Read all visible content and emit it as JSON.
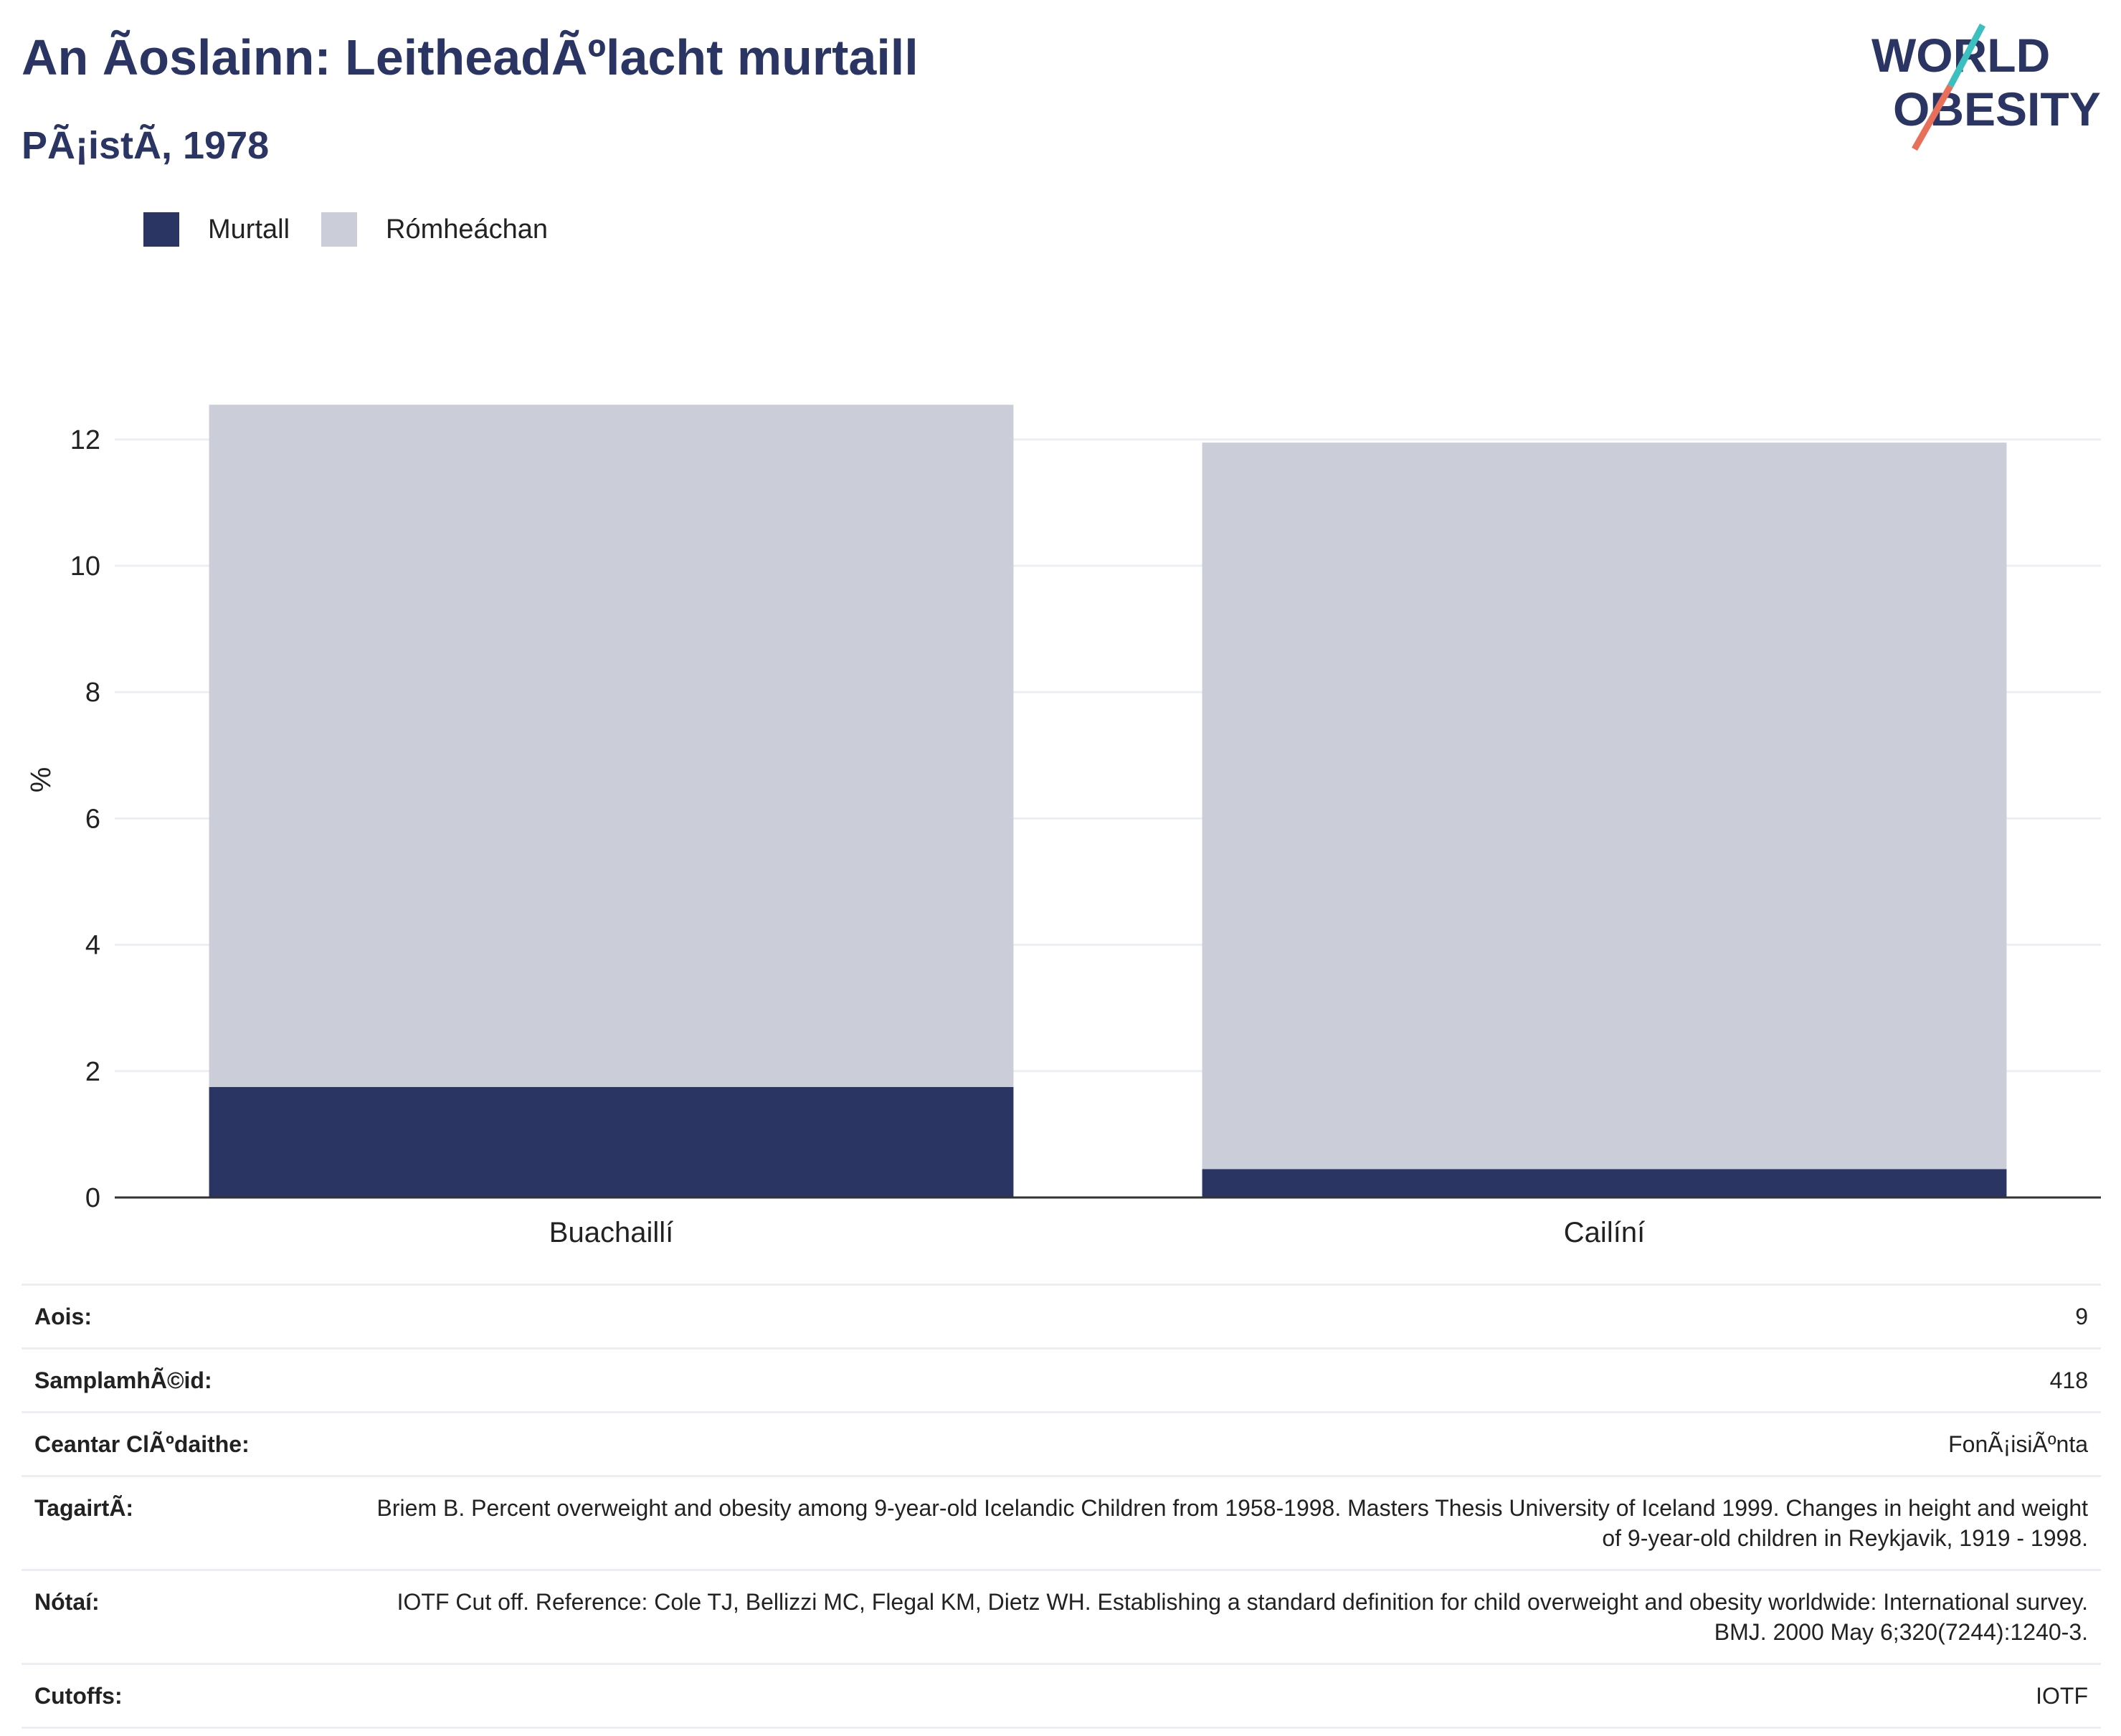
{
  "header": {
    "title": "An Ã­oslainn: LeitheadÃºlacht murtaill",
    "subtitle": "PÃ¡istÃ, 1978"
  },
  "logo": {
    "line1": "WORLD",
    "line2": "OBESITY",
    "colors": {
      "text": "#2a3563",
      "slash_top": "#3bbfbf",
      "slash_bottom": "#e8705a"
    }
  },
  "legend": [
    {
      "label": "Murtall",
      "color": "#2a3563"
    },
    {
      "label": "Rómheáchan",
      "color": "#cbcdd9"
    }
  ],
  "chart_data": {
    "type": "bar",
    "stacked": true,
    "categories": [
      "Buachaillí",
      "Cailíní"
    ],
    "series": [
      {
        "name": "Murtall",
        "values": [
          1.75,
          0.45
        ],
        "color": "#2a3563"
      },
      {
        "name": "Rómheáchan",
        "values": [
          10.8,
          11.5
        ],
        "color": "#cbcdd9"
      }
    ],
    "ylabel": "%",
    "ylim": [
      0,
      12.6
    ],
    "yticks": [
      "0",
      "2",
      "4",
      "6",
      "8",
      "10",
      "12"
    ],
    "grid": true,
    "legend_position": "top-left"
  },
  "info": [
    {
      "key": "Aois:",
      "value": "9"
    },
    {
      "key": "SamplamhÃ©id:",
      "value": "418"
    },
    {
      "key": "Ceantar ClÃºdaithe:",
      "value": "FonÃ¡isiÃºnta"
    },
    {
      "key": "TagairtÃ:",
      "value": "Briem B. Percent overweight and obesity among 9-year-old Icelandic Children from 1958-1998. Masters Thesis University of Iceland 1999. Changes in height and weight of 9-year-old children in Reykjavik, 1919 - 1998."
    },
    {
      "key": "Nótaí:",
      "value": "IOTF Cut off. Reference: Cole TJ, Bellizzi MC, Flegal KM, Dietz WH. Establishing a standard definition for child overweight and obesity worldwide: International survey. BMJ. 2000 May 6;320(7244):1240-3."
    },
    {
      "key": "Cutoffs:",
      "value": "IOTF"
    }
  ]
}
